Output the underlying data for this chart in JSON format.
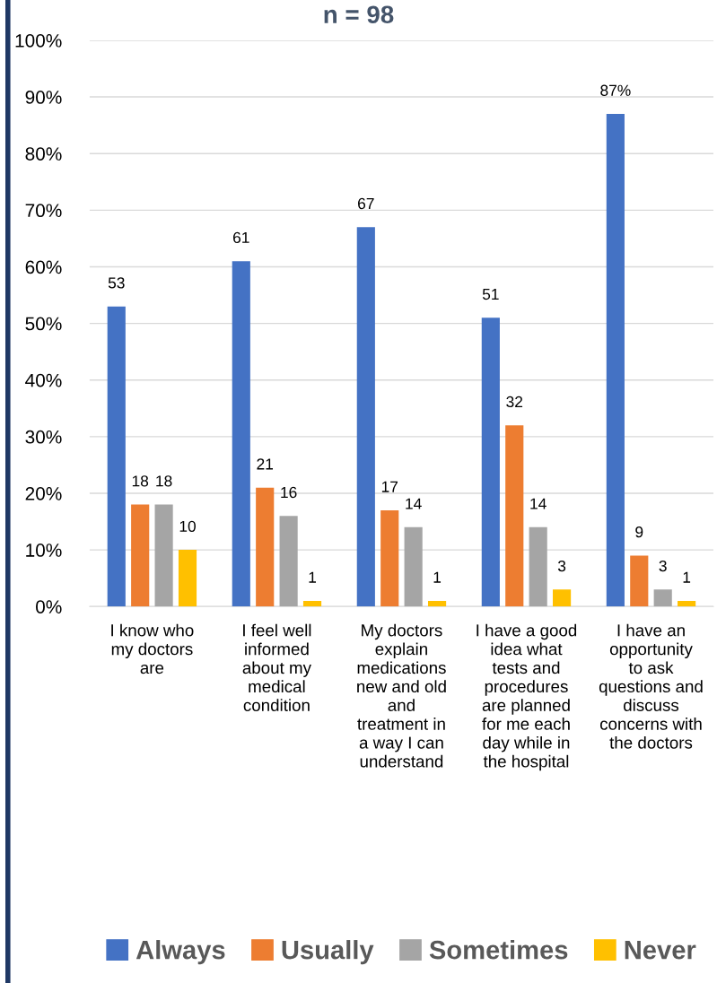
{
  "chart_data": {
    "type": "bar",
    "title": "n = 98",
    "categories": [
      "I know who\nmy doctors\nare",
      "I feel well\ninformed\nabout my\nmedical\ncondition",
      "My doctors\nexplain\nmedications\nnew and old\nand\ntreatment in\na way I can\nunderstand",
      "I have a good\nidea what\ntests and\nprocedures\nare planned\nfor me each\nday while in\nthe hospital",
      "I have an\nopportunity\nto ask\nquestions and\ndiscuss\nconcerns with\nthe doctors"
    ],
    "series": [
      {
        "name": "Always",
        "color": "#4472c4",
        "values": [
          53,
          61,
          67,
          51,
          87
        ],
        "value_labels": [
          "53",
          "61",
          "67",
          "51",
          "87%"
        ]
      },
      {
        "name": "Usually",
        "color": "#ed7d31",
        "values": [
          18,
          21,
          17,
          32,
          9
        ],
        "value_labels": [
          "18",
          "21",
          "17",
          "32",
          "9"
        ]
      },
      {
        "name": "Sometimes",
        "color": "#a5a5a5",
        "values": [
          18,
          16,
          14,
          14,
          3
        ],
        "value_labels": [
          "18",
          "16",
          "14",
          "14",
          "3"
        ]
      },
      {
        "name": "Never",
        "color": "#ffc000",
        "values": [
          10,
          1,
          1,
          3,
          1
        ],
        "value_labels": [
          "10",
          "1",
          "1",
          "3",
          "1"
        ]
      }
    ],
    "ylim": [
      0,
      100
    ],
    "yticks": [
      {
        "value": 0,
        "label": "0%"
      },
      {
        "value": 10,
        "label": "10%"
      },
      {
        "value": 20,
        "label": "20%"
      },
      {
        "value": 30,
        "label": "30%"
      },
      {
        "value": 40,
        "label": "40%"
      },
      {
        "value": 50,
        "label": "50%"
      },
      {
        "value": 60,
        "label": "60%"
      },
      {
        "value": 70,
        "label": "70%"
      },
      {
        "value": 80,
        "label": "80%"
      },
      {
        "value": 90,
        "label": "90%"
      },
      {
        "value": 100,
        "label": "100%"
      }
    ],
    "grid": "y",
    "legend": "bottom"
  }
}
